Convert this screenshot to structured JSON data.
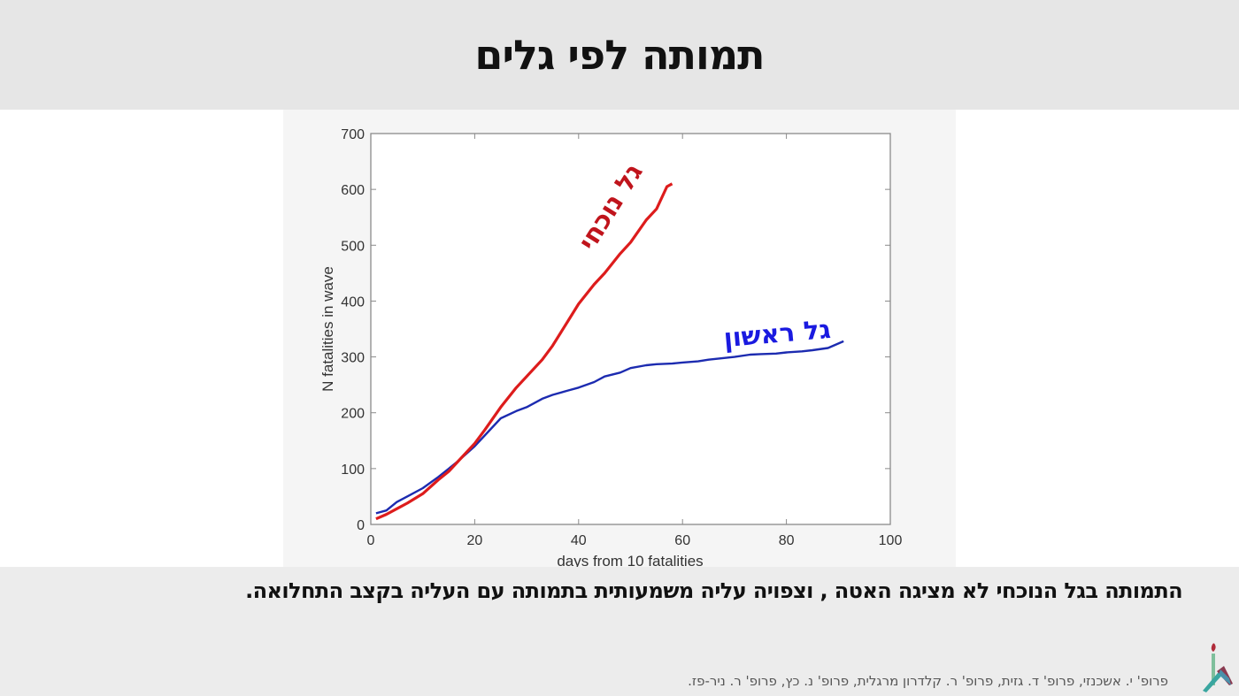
{
  "slide": {
    "title": "תמותה לפי גלים",
    "summary": "התמותה בגל הנוכחי לא מציגה האטה , וצפויה עליה משמעותית בתמותה עם העליה בקצב התחלואה.",
    "credits": "פרופ' י. אשכנזי, פרופ' ד. גזית, פרופ' ר. קלדרון מרגלית, פרופ' נ. כץ, פרופ' ר. ניר-פז.",
    "logo_icon": "institution-logo-icon"
  },
  "colors": {
    "current_wave": "#dd1c1c",
    "current_wave_label": "#c0141c",
    "first_wave": "#1c2bb0",
    "first_wave_label": "#1a1ae0",
    "title_band": "#e6e6e6",
    "bottom_band": "#ececec"
  },
  "chart_data": {
    "type": "line",
    "title": "",
    "xlabel": "days from 10 fatalities",
    "ylabel": "N fatalities in wave",
    "xlim": [
      0,
      100
    ],
    "ylim": [
      0,
      700
    ],
    "xticks": [
      0,
      20,
      40,
      60,
      80,
      100
    ],
    "yticks": [
      0,
      100,
      200,
      300,
      400,
      500,
      600,
      700
    ],
    "grid": false,
    "legend": "inline annotations",
    "series": [
      {
        "name": "גל נוכחי",
        "label_meaning": "current wave",
        "color": "#dd1c1c",
        "x": [
          1,
          3,
          5,
          7,
          10,
          13,
          15,
          17,
          20,
          22,
          25,
          28,
          30,
          33,
          35,
          38,
          40,
          43,
          45,
          48,
          50,
          53,
          55,
          57,
          58
        ],
        "values": [
          10,
          18,
          28,
          38,
          55,
          80,
          95,
          115,
          145,
          170,
          210,
          245,
          265,
          295,
          320,
          365,
          395,
          430,
          450,
          485,
          505,
          545,
          565,
          605,
          610
        ]
      },
      {
        "name": "גל ראשון",
        "label_meaning": "first wave",
        "color": "#1c2bb0",
        "x": [
          1,
          3,
          5,
          7,
          10,
          13,
          15,
          17,
          20,
          22,
          25,
          28,
          30,
          33,
          35,
          38,
          40,
          43,
          45,
          48,
          50,
          53,
          55,
          58,
          60,
          63,
          65,
          68,
          70,
          73,
          75,
          78,
          80,
          83,
          85,
          88,
          91
        ],
        "values": [
          20,
          25,
          40,
          50,
          65,
          85,
          100,
          115,
          140,
          160,
          190,
          203,
          210,
          225,
          232,
          240,
          245,
          255,
          265,
          272,
          280,
          285,
          287,
          288,
          290,
          292,
          295,
          298,
          300,
          304,
          305,
          306,
          308,
          310,
          312,
          316,
          328
        ]
      }
    ],
    "annotations": [
      {
        "text": "גל נוכחי",
        "color": "#c0141c",
        "near_series": "current wave",
        "rotation_deg": -58
      },
      {
        "text": "גל ראשון",
        "color": "#1a1ae0",
        "near_series": "first wave",
        "rotation_deg": -5
      }
    ]
  }
}
